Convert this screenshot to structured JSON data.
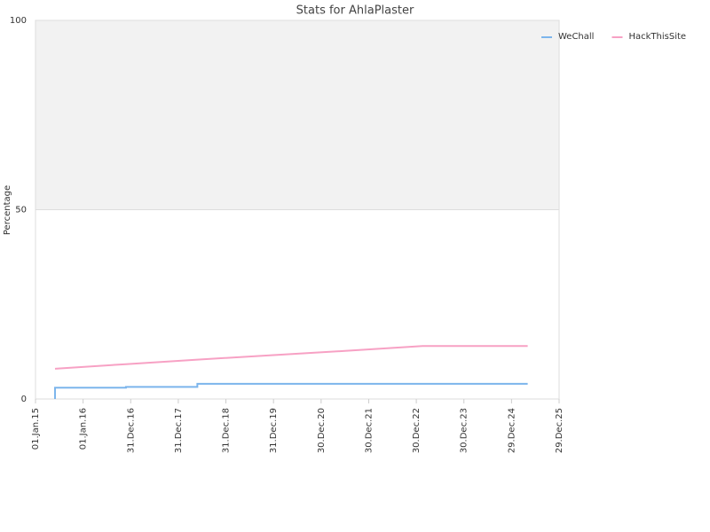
{
  "chart_data": {
    "type": "line",
    "title": "Stats for AhlaPlaster",
    "y_label": "Percentage",
    "xlim": [
      2015,
      2026
    ],
    "ylim": [
      0,
      100
    ],
    "yticks": [
      0,
      50,
      100
    ],
    "xticks": [
      {
        "value": 2015,
        "label": "01.Jan.15"
      },
      {
        "value": 2016,
        "label": "01.Jan.16"
      },
      {
        "value": 2017,
        "label": "31.Dec.16"
      },
      {
        "value": 2018,
        "label": "31.Dec.17"
      },
      {
        "value": 2019,
        "label": "31.Dec.18"
      },
      {
        "value": 2020,
        "label": "31.Dec.19"
      },
      {
        "value": 2021,
        "label": "30.Dec.20"
      },
      {
        "value": 2022,
        "label": "30.Dec.21"
      },
      {
        "value": 2023,
        "label": "30.Dec.22"
      },
      {
        "value": 2024,
        "label": "30.Dec.23"
      },
      {
        "value": 2025,
        "label": "29.Dec.24"
      },
      {
        "value": 2026,
        "label": "29.Dec.25"
      }
    ],
    "grid": true,
    "plot_band": {
      "from": 50,
      "to": 100,
      "color": "#f2f2f2"
    },
    "legend": "top-right",
    "series": [
      {
        "name": "WeChall",
        "color": "#7cb5ec",
        "x": [
          2015.41,
          2015.41,
          2016.9,
          2016.9,
          2018.4,
          2018.4,
          2025.34
        ],
        "values": [
          0,
          3,
          3,
          3.2,
          3.2,
          4,
          4
        ]
      },
      {
        "name": "HackThisSite",
        "color": "#f7a1c4",
        "x": [
          2015.41,
          2016.9,
          2018.4,
          2020,
          2021.5,
          2023.13,
          2025.34
        ],
        "values": [
          8,
          9.2,
          10.4,
          11.6,
          12.7,
          14,
          14
        ]
      }
    ]
  }
}
